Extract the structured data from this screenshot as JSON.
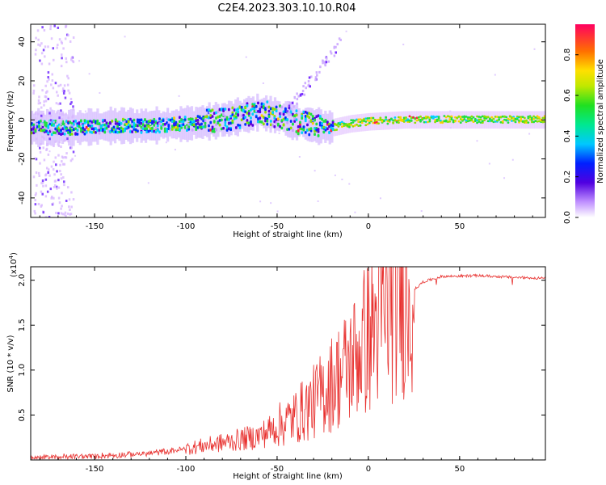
{
  "title": "C2E4.2023.303.10.10.R04",
  "chart_data": [
    {
      "type": "heatmap",
      "xlabel": "Height of straight line (km)",
      "ylabel": "Frequency (Hz)",
      "xlim": [
        -185,
        97
      ],
      "ylim": [
        -50,
        49
      ],
      "xticks": [
        "-150",
        "-100",
        "-50",
        "0",
        "50"
      ],
      "yticks": [
        "-40",
        "-20",
        "0",
        "20",
        "40"
      ],
      "ridge": {
        "x": [
          -183,
          -160,
          -140,
          -120,
          -100,
          -80,
          -70,
          -60,
          -50,
          -40,
          -30,
          -20,
          -10,
          0,
          20,
          40,
          60,
          80,
          95
        ],
        "y": [
          -4,
          -4,
          -3,
          -3,
          -2,
          0,
          2,
          4,
          2,
          -1,
          -3,
          -4,
          -2,
          -1,
          0,
          0,
          0,
          0,
          0
        ]
      },
      "colorbar": {
        "label": "Normalized spectral amplitude",
        "ticks": [
          "0.0",
          "0.2",
          "0.4",
          "0.6",
          "0.8"
        ],
        "range": [
          0,
          0.95
        ]
      }
    },
    {
      "type": "line",
      "xlabel": "Height of straight line (km)",
      "ylabel": "SNR (10 * v/v)",
      "multiplier": "(x10",
      "multiplier_exp": "4",
      "xlim": [
        -185,
        97
      ],
      "ylim": [
        0,
        2.15
      ],
      "xticks": [
        "-150",
        "-100",
        "-50",
        "0",
        "50"
      ],
      "yticks": [
        "0.5",
        "1.0",
        "1.5",
        "2.0"
      ],
      "color": "#e8312f",
      "trend": {
        "x": [
          -185,
          -150,
          -120,
          -100,
          -80,
          -60,
          -50,
          -40,
          -30,
          -20,
          -10,
          0,
          10,
          20,
          30,
          40,
          60,
          80,
          97
        ],
        "y": [
          0.02,
          0.04,
          0.07,
          0.12,
          0.18,
          0.25,
          0.35,
          0.45,
          0.6,
          0.8,
          1.0,
          1.3,
          1.55,
          1.8,
          1.98,
          2.04,
          2.05,
          2.03,
          2.02
        ]
      }
    }
  ]
}
